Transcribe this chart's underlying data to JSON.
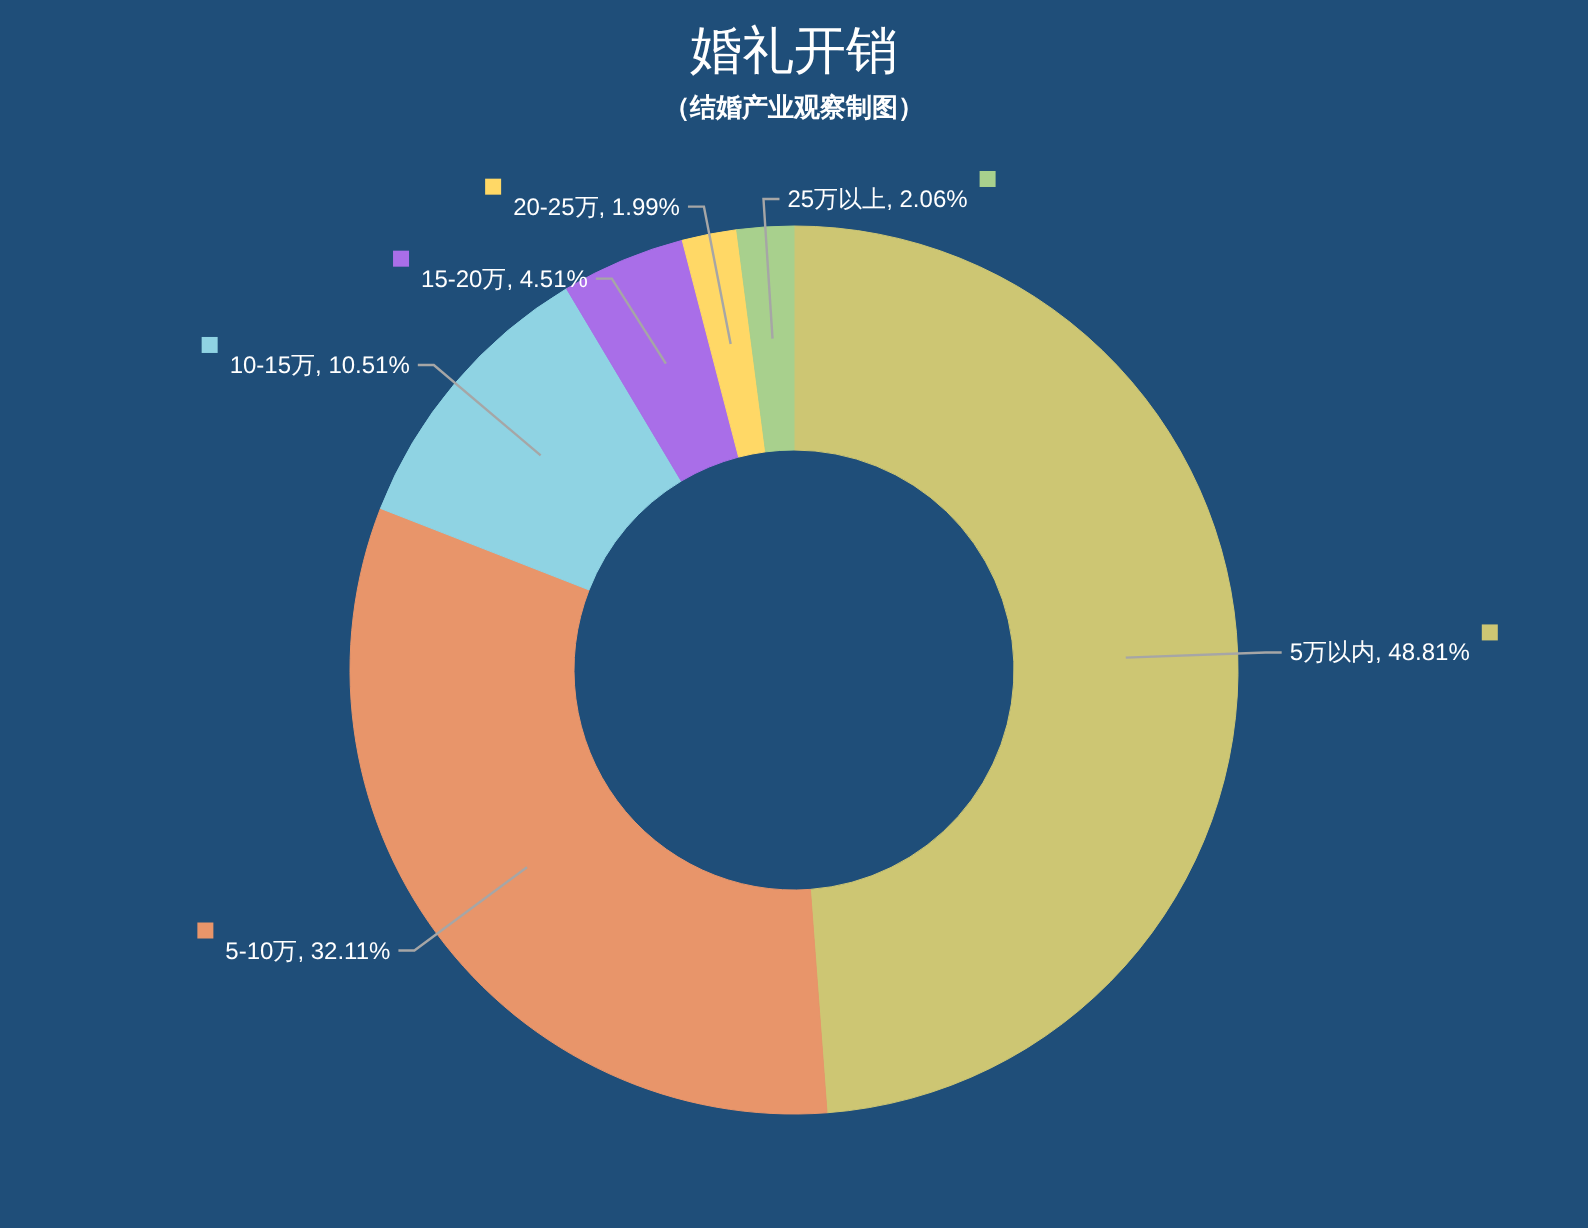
{
  "chart_data": {
    "type": "donut",
    "title": "婚礼开销",
    "subtitle": "（结婚产业观察制图）",
    "categories": [
      "5万以内",
      "5-10万",
      "10-15万",
      "15-20万",
      "20-25万",
      "25万以上"
    ],
    "value_labels": [
      ", 48.81%",
      ", 32.11%",
      ", 10.51%",
      ", 4.51%",
      ", 1.99%",
      ", 2.06%"
    ],
    "values": [
      48.81,
      32.11,
      10.51,
      4.51,
      1.99,
      2.06
    ],
    "colors": [
      "#cdc673",
      "#e8956a",
      "#8fd3e3",
      "#a96ee8",
      "#ffd866",
      "#a8d08d"
    ],
    "data_labels": true,
    "legend": "left"
  }
}
